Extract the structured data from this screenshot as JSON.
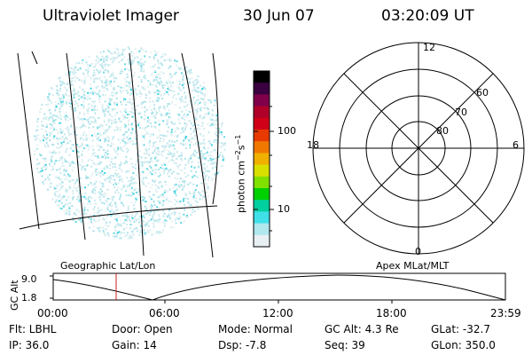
{
  "header": {
    "title": "Ultraviolet Imager",
    "date": "30 Jun 07",
    "time": "03:20:09 UT"
  },
  "colorbar": {
    "label": "photon cm-2s-1",
    "label_base": "photon cm",
    "label_exp1": "−2",
    "label_mid": "s",
    "label_exp2": "−1",
    "ticks": [
      "100",
      "10"
    ],
    "colors": [
      "#000000",
      "#3a0040",
      "#80004a",
      "#b0002a",
      "#d00018",
      "#e83a00",
      "#f07800",
      "#f0b000",
      "#d8e000",
      "#80e000",
      "#00d000",
      "#00d0a0",
      "#40e0e8",
      "#b0e8ee",
      "#e8f0f4"
    ]
  },
  "polar_plot": {
    "mlt_labels": [
      "12",
      "6",
      "0",
      "18"
    ],
    "lat_labels": [
      "60",
      "70",
      "80"
    ]
  },
  "altitude_plot": {
    "label_left": "Geographic Lat/Lon",
    "label_right": "Apex MLat/MLT",
    "ylabel": "GC Alt",
    "yticks": [
      "9.0",
      "1.8"
    ],
    "xticks": [
      "00:00",
      "06:00",
      "12:00",
      "18:00",
      "23:59"
    ]
  },
  "info": {
    "row1": [
      "Flt: LBHL",
      "Door: Open",
      "Mode: Normal",
      "GC Alt: 4.3 Re",
      "GLat: -32.7"
    ],
    "row2": [
      "IP: 36.0",
      "Gain: 14",
      "Dsp:    -7.8",
      "Seq: 39",
      "GLon: 350.0"
    ]
  }
}
